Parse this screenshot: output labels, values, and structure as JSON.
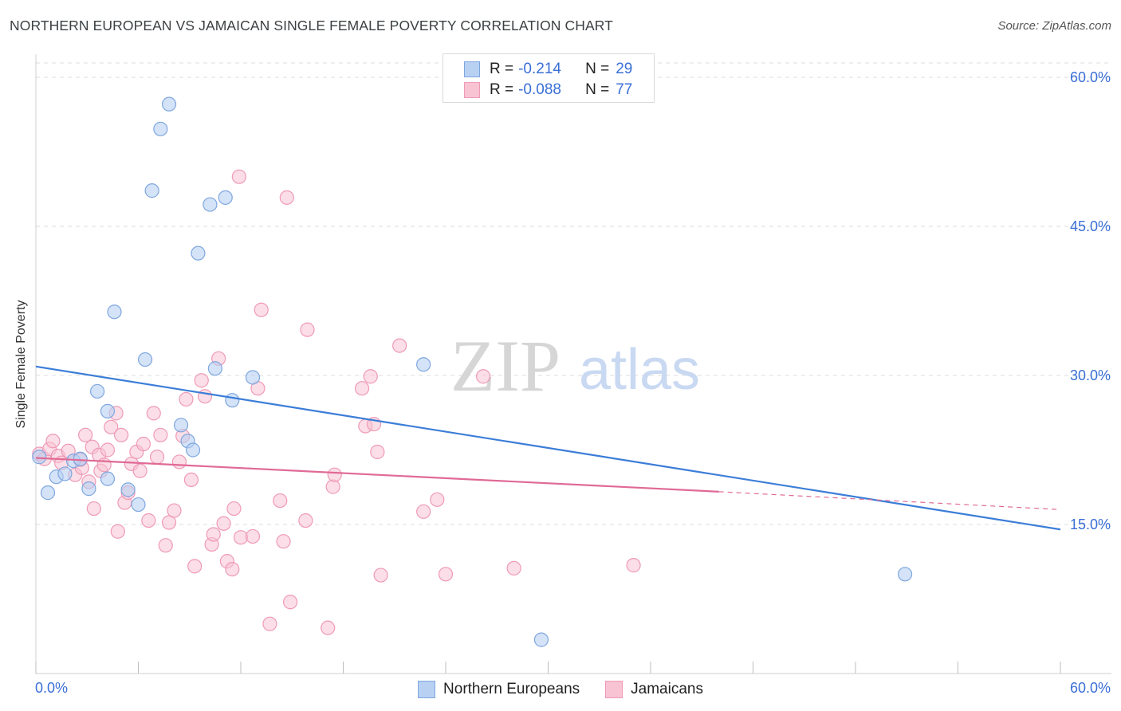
{
  "title": "NORTHERN EUROPEAN VS JAMAICAN SINGLE FEMALE POVERTY CORRELATION CHART",
  "source": "Source: ZipAtlas.com",
  "watermark": {
    "zip": "ZIP",
    "atlas": "atlas"
  },
  "colors": {
    "blue": "#3b7dd8",
    "blue_fill": "#b8d0f2",
    "blue_stroke": "#7fa7e0",
    "pink": "#e06a96",
    "pink_fill": "#f8c3d3",
    "pink_stroke": "#ef9ab6",
    "axis_label": "#3a6fd6",
    "grid": "#dddddd"
  },
  "legend_top": [
    {
      "r_label": "R =",
      "r_value": "-0.214",
      "n_label": "N =",
      "n_value": "29"
    },
    {
      "r_label": "R =",
      "r_value": "-0.088",
      "n_label": "N =",
      "n_value": "77"
    }
  ],
  "legend_bottom": [
    {
      "label": "Northern Europeans"
    },
    {
      "label": "Jamaicans"
    }
  ],
  "chart_data": {
    "type": "scatter",
    "title": "NORTHERN EUROPEAN VS JAMAICAN SINGLE FEMALE POVERTY CORRELATION CHART",
    "xlabel": "",
    "ylabel": "Single Female Poverty",
    "xlim": [
      0,
      60
    ],
    "ylim": [
      0,
      62
    ],
    "x_tick_labels": [
      "0.0%",
      "60.0%"
    ],
    "y_ticks": [
      15,
      30,
      45,
      60
    ],
    "y_tick_labels": [
      "15.0%",
      "30.0%",
      "45.0%",
      "60.0%"
    ],
    "grid": true,
    "series": [
      {
        "name": "Northern Europeans",
        "color": "#3b7dd8",
        "trend": {
          "x": [
            0,
            60
          ],
          "y": [
            30.9,
            14.5
          ]
        },
        "points": [
          [
            0.2,
            21.8
          ],
          [
            0.7,
            18.2
          ],
          [
            1.2,
            19.8
          ],
          [
            1.7,
            20.1
          ],
          [
            2.2,
            21.4
          ],
          [
            2.6,
            21.6
          ],
          [
            3.1,
            18.6
          ],
          [
            3.6,
            28.4
          ],
          [
            4.2,
            26.4
          ],
          [
            4.2,
            19.6
          ],
          [
            4.6,
            36.4
          ],
          [
            5.4,
            18.5
          ],
          [
            6.0,
            17.0
          ],
          [
            6.4,
            31.6
          ],
          [
            6.8,
            48.6
          ],
          [
            7.3,
            54.8
          ],
          [
            7.8,
            57.3
          ],
          [
            8.5,
            25.0
          ],
          [
            8.9,
            23.4
          ],
          [
            9.2,
            22.5
          ],
          [
            9.5,
            42.3
          ],
          [
            10.2,
            47.2
          ],
          [
            10.5,
            30.7
          ],
          [
            11.1,
            47.9
          ],
          [
            11.5,
            27.5
          ],
          [
            12.7,
            29.8
          ],
          [
            22.7,
            31.1
          ],
          [
            29.6,
            3.4
          ],
          [
            50.9,
            10.0
          ]
        ]
      },
      {
        "name": "Jamaicans",
        "color": "#e06a96",
        "trend": {
          "x": [
            0,
            40
          ],
          "y": [
            21.7,
            18.3
          ],
          "dash_to": {
            "x": 60,
            "y": 16.5
          }
        },
        "points": [
          [
            0.2,
            22.1
          ],
          [
            0.5,
            21.6
          ],
          [
            0.8,
            22.6
          ],
          [
            1.0,
            23.4
          ],
          [
            1.3,
            21.9
          ],
          [
            1.5,
            21.2
          ],
          [
            1.9,
            22.4
          ],
          [
            2.3,
            20.0
          ],
          [
            2.6,
            21.5
          ],
          [
            2.7,
            20.7
          ],
          [
            2.9,
            24.0
          ],
          [
            3.1,
            19.3
          ],
          [
            3.3,
            22.8
          ],
          [
            3.4,
            16.6
          ],
          [
            3.7,
            22.0
          ],
          [
            3.8,
            20.4
          ],
          [
            4.0,
            21.0
          ],
          [
            4.2,
            22.5
          ],
          [
            4.4,
            24.8
          ],
          [
            4.7,
            26.2
          ],
          [
            4.8,
            14.3
          ],
          [
            5.0,
            24.0
          ],
          [
            5.2,
            17.2
          ],
          [
            5.4,
            18.2
          ],
          [
            5.6,
            21.1
          ],
          [
            5.9,
            22.3
          ],
          [
            6.1,
            20.4
          ],
          [
            6.3,
            23.1
          ],
          [
            6.6,
            15.4
          ],
          [
            6.9,
            26.2
          ],
          [
            7.1,
            21.8
          ],
          [
            7.3,
            24.0
          ],
          [
            7.6,
            12.9
          ],
          [
            7.8,
            15.2
          ],
          [
            8.1,
            16.4
          ],
          [
            8.4,
            21.3
          ],
          [
            8.6,
            23.9
          ],
          [
            8.8,
            27.6
          ],
          [
            9.1,
            19.5
          ],
          [
            9.3,
            10.8
          ],
          [
            9.7,
            29.5
          ],
          [
            9.9,
            27.9
          ],
          [
            10.3,
            13.0
          ],
          [
            10.4,
            14.0
          ],
          [
            10.7,
            31.7
          ],
          [
            11.0,
            15.1
          ],
          [
            11.2,
            11.3
          ],
          [
            11.5,
            10.5
          ],
          [
            11.6,
            16.6
          ],
          [
            11.9,
            50.0
          ],
          [
            12.0,
            13.7
          ],
          [
            12.7,
            13.8
          ],
          [
            13.0,
            28.7
          ],
          [
            13.2,
            36.6
          ],
          [
            13.7,
            5.0
          ],
          [
            14.3,
            17.4
          ],
          [
            14.5,
            13.3
          ],
          [
            14.7,
            47.9
          ],
          [
            14.9,
            7.2
          ],
          [
            15.8,
            15.4
          ],
          [
            15.9,
            34.6
          ],
          [
            17.1,
            4.6
          ],
          [
            17.4,
            18.8
          ],
          [
            17.5,
            20.0
          ],
          [
            19.1,
            28.7
          ],
          [
            19.3,
            24.9
          ],
          [
            19.6,
            29.9
          ],
          [
            19.8,
            25.1
          ],
          [
            20.0,
            22.3
          ],
          [
            20.2,
            9.9
          ],
          [
            21.3,
            33.0
          ],
          [
            22.7,
            16.3
          ],
          [
            23.5,
            17.5
          ],
          [
            24.0,
            10.0
          ],
          [
            26.2,
            29.9
          ],
          [
            28.0,
            10.6
          ],
          [
            35.0,
            10.9
          ]
        ]
      }
    ]
  }
}
